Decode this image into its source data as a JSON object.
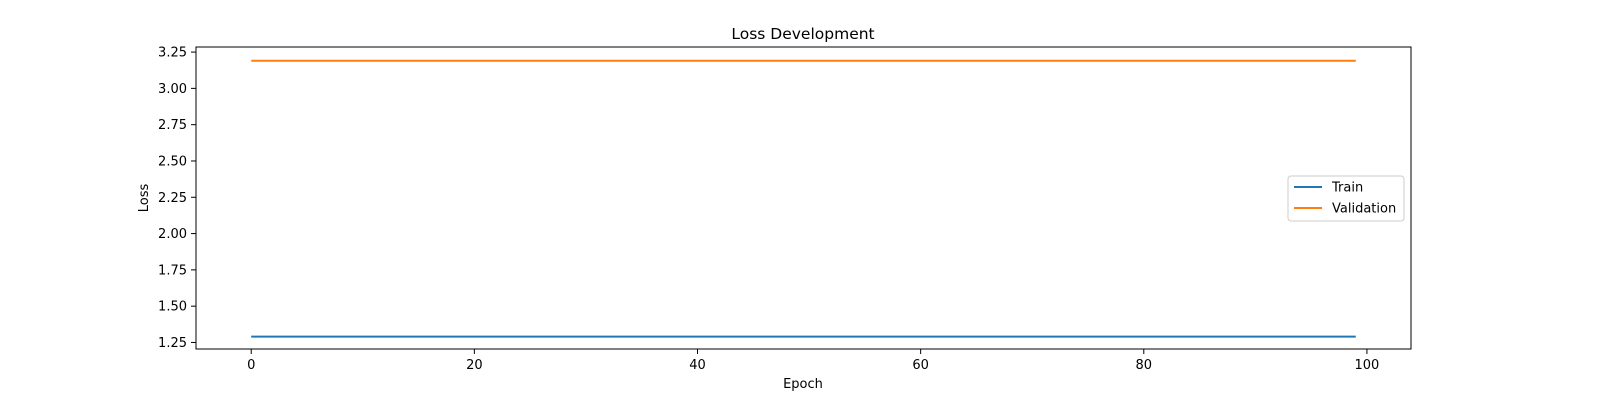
{
  "chart_data": {
    "type": "line",
    "title": "Loss Development",
    "xlabel": "Epoch",
    "ylabel": "Loss",
    "xlim": [
      -4.95,
      103.95
    ],
    "ylim": [
      1.205,
      3.285
    ],
    "xticks": [
      0,
      20,
      40,
      60,
      80,
      100
    ],
    "yticks": [
      1.25,
      1.5,
      1.75,
      2.0,
      2.25,
      2.5,
      2.75,
      3.0,
      3.25
    ],
    "x": {
      "start": 0,
      "end": 99,
      "step": 1
    },
    "series": [
      {
        "name": "Train",
        "value": 1.29,
        "color": "#1f77b4"
      },
      {
        "name": "Validation",
        "value": 3.19,
        "color": "#ff7f0e"
      }
    ],
    "grid": false,
    "legend_position": "center-right"
  }
}
